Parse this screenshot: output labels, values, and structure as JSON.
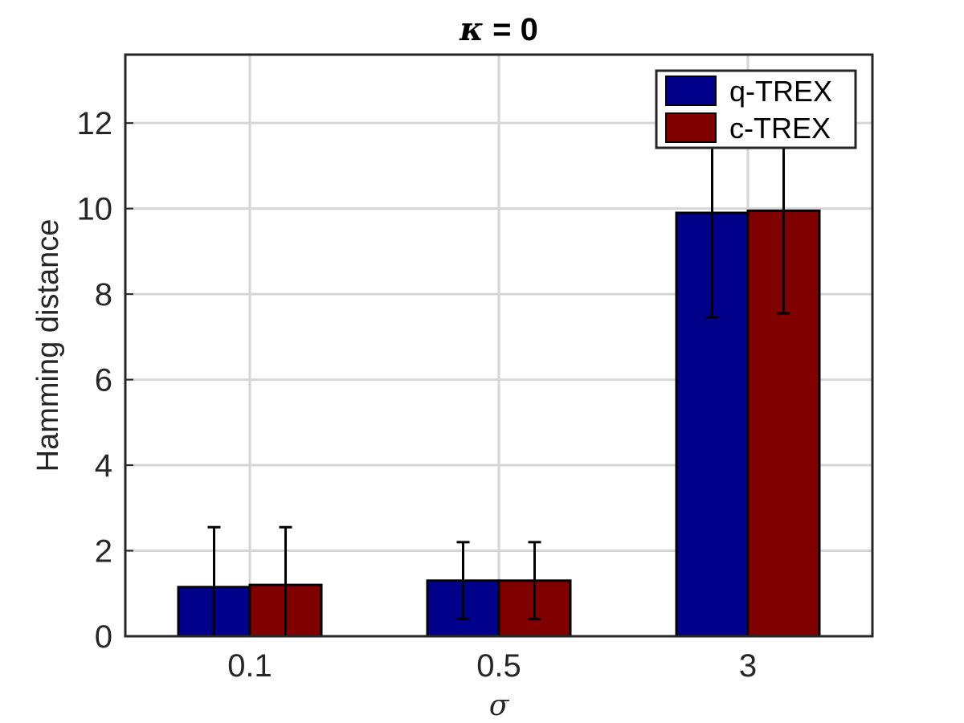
{
  "chart_data": {
    "type": "bar",
    "title_symbol": "κ",
    "title_rest": " = 0",
    "xlabel": "σ",
    "ylabel": "Hamming distance",
    "categories": [
      "0.1",
      "0.5",
      "3"
    ],
    "ylim": [
      0,
      13.6
    ],
    "yticks": [
      0,
      2,
      4,
      6,
      8,
      10,
      12
    ],
    "grid": true,
    "legend_position": "top-right",
    "series": [
      {
        "name": "q-TREX",
        "color": "#00008B",
        "values": [
          1.15,
          1.3,
          9.9
        ],
        "error_low": [
          1.15,
          0.9,
          2.45
        ],
        "error_high": [
          1.4,
          0.9,
          2.45
        ]
      },
      {
        "name": "c-TREX",
        "color": "#800000",
        "values": [
          1.2,
          1.3,
          9.95
        ],
        "error_low": [
          1.2,
          0.9,
          2.4
        ],
        "error_high": [
          1.35,
          0.9,
          2.4
        ]
      }
    ]
  }
}
